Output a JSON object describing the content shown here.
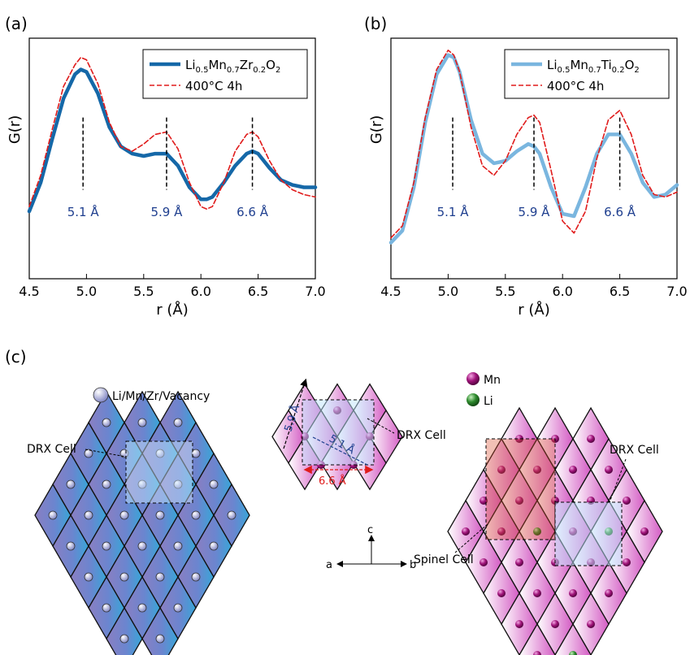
{
  "panel_labels": {
    "a": "(a)",
    "b": "(b)",
    "c": "(c)"
  },
  "colors": {
    "zr_line": "#1568a8",
    "ti_line": "#7ab6df",
    "anneal_line": "#e01b1b",
    "marker_text": "#1f3f8f",
    "mn_atom": "#a0147a",
    "li_atom": "#2d8a2d",
    "red_arrow": "#e01b1b"
  },
  "chart_data": [
    {
      "panel": "(a)",
      "type": "line",
      "xlabel": "r (Å)",
      "ylabel": "G(r)",
      "xlim": [
        4.5,
        7.0
      ],
      "ylim": [
        0,
        1
      ],
      "xticks": [
        "4.5",
        "5.0",
        "5.5",
        "6.0",
        "6.5",
        "7.0"
      ],
      "xtick_values": [
        4.5,
        5.0,
        5.5,
        6.0,
        6.5,
        7.0
      ],
      "legend_position": "top-right",
      "series": [
        {
          "name_parts": [
            "Li",
            "0.5",
            "Mn",
            "0.7",
            "Zr",
            "0.2",
            "O",
            "2"
          ],
          "style": "solid",
          "x": [
            4.5,
            4.6,
            4.7,
            4.8,
            4.9,
            4.95,
            5.0,
            5.1,
            5.2,
            5.3,
            5.4,
            5.5,
            5.6,
            5.7,
            5.8,
            5.9,
            6.0,
            6.05,
            6.1,
            6.2,
            6.3,
            6.4,
            6.45,
            6.5,
            6.6,
            6.7,
            6.8,
            6.9,
            7.0
          ],
          "y": [
            0.28,
            0.4,
            0.58,
            0.75,
            0.85,
            0.87,
            0.86,
            0.77,
            0.63,
            0.55,
            0.52,
            0.51,
            0.52,
            0.52,
            0.47,
            0.38,
            0.33,
            0.33,
            0.34,
            0.4,
            0.47,
            0.52,
            0.53,
            0.52,
            0.46,
            0.41,
            0.39,
            0.38,
            0.38
          ]
        },
        {
          "name": "400°C 4h",
          "style": "dashed",
          "x": [
            4.5,
            4.6,
            4.7,
            4.8,
            4.9,
            4.95,
            5.0,
            5.1,
            5.2,
            5.3,
            5.4,
            5.5,
            5.6,
            5.7,
            5.8,
            5.9,
            6.0,
            6.05,
            6.1,
            6.2,
            6.3,
            6.4,
            6.45,
            6.5,
            6.6,
            6.7,
            6.8,
            6.9,
            7.0
          ],
          "y": [
            0.3,
            0.43,
            0.62,
            0.8,
            0.89,
            0.92,
            0.91,
            0.81,
            0.65,
            0.55,
            0.53,
            0.56,
            0.6,
            0.61,
            0.54,
            0.4,
            0.3,
            0.29,
            0.3,
            0.4,
            0.53,
            0.6,
            0.61,
            0.59,
            0.49,
            0.41,
            0.37,
            0.35,
            0.34
          ]
        }
      ],
      "markers": [
        {
          "x": 4.97,
          "label": "5.1 Å"
        },
        {
          "x": 5.7,
          "label": "5.9 Å"
        },
        {
          "x": 6.45,
          "label": "6.6 Å"
        }
      ]
    },
    {
      "panel": "(b)",
      "type": "line",
      "xlabel": "r (Å)",
      "ylabel": "G(r)",
      "xlim": [
        4.5,
        7.0
      ],
      "ylim": [
        0,
        1
      ],
      "xticks": [
        "4.5",
        "5.0",
        "5.5",
        "6.0",
        "6.5",
        "7.0"
      ],
      "xtick_values": [
        4.5,
        5.0,
        5.5,
        6.0,
        6.5,
        7.0
      ],
      "legend_position": "top-right",
      "series": [
        {
          "name_parts": [
            "Li",
            "0.5",
            "Mn",
            "0.7",
            "Ti",
            "0.2",
            "O",
            "2"
          ],
          "style": "solid",
          "x": [
            4.5,
            4.6,
            4.7,
            4.8,
            4.9,
            5.0,
            5.05,
            5.1,
            5.2,
            5.3,
            5.4,
            5.5,
            5.6,
            5.7,
            5.75,
            5.8,
            5.9,
            6.0,
            6.1,
            6.2,
            6.3,
            6.4,
            6.5,
            6.6,
            6.7,
            6.8,
            6.9,
            7.0
          ],
          "y": [
            0.15,
            0.2,
            0.38,
            0.65,
            0.85,
            0.93,
            0.92,
            0.86,
            0.66,
            0.52,
            0.48,
            0.49,
            0.53,
            0.56,
            0.55,
            0.52,
            0.38,
            0.27,
            0.26,
            0.38,
            0.52,
            0.6,
            0.6,
            0.52,
            0.4,
            0.34,
            0.35,
            0.39
          ]
        },
        {
          "name": "400°C 4h",
          "style": "dashed",
          "x": [
            4.5,
            4.6,
            4.7,
            4.8,
            4.9,
            5.0,
            5.05,
            5.1,
            5.2,
            5.3,
            5.4,
            5.5,
            5.6,
            5.7,
            5.75,
            5.8,
            5.9,
            6.0,
            6.1,
            6.2,
            6.3,
            6.4,
            6.5,
            6.6,
            6.7,
            6.8,
            6.9,
            7.0
          ],
          "y": [
            0.17,
            0.22,
            0.4,
            0.67,
            0.87,
            0.95,
            0.93,
            0.86,
            0.63,
            0.47,
            0.43,
            0.49,
            0.6,
            0.67,
            0.68,
            0.65,
            0.45,
            0.24,
            0.19,
            0.28,
            0.5,
            0.66,
            0.7,
            0.6,
            0.43,
            0.35,
            0.34,
            0.36
          ]
        }
      ],
      "markers": [
        {
          "x": 5.04,
          "label": "5.1 Å"
        },
        {
          "x": 5.75,
          "label": "5.9 Å"
        },
        {
          "x": 6.5,
          "label": "6.6 Å"
        }
      ]
    }
  ],
  "diagram": {
    "left_legend": "Li/Mn/Zr/Vacancy",
    "left_cell_label": "DRX Cell",
    "middle_cell_label": "DRX Cell",
    "middle_dims": [
      "5.9 Å",
      "5.1 Å",
      "6.6 Å"
    ],
    "right_legend": [
      "Mn",
      "Li"
    ],
    "right_drx_label": "DRX Cell",
    "right_spinel_label": "Spinel Cell",
    "axes_labels": {
      "a": "a",
      "b": "b",
      "c": "c"
    }
  }
}
